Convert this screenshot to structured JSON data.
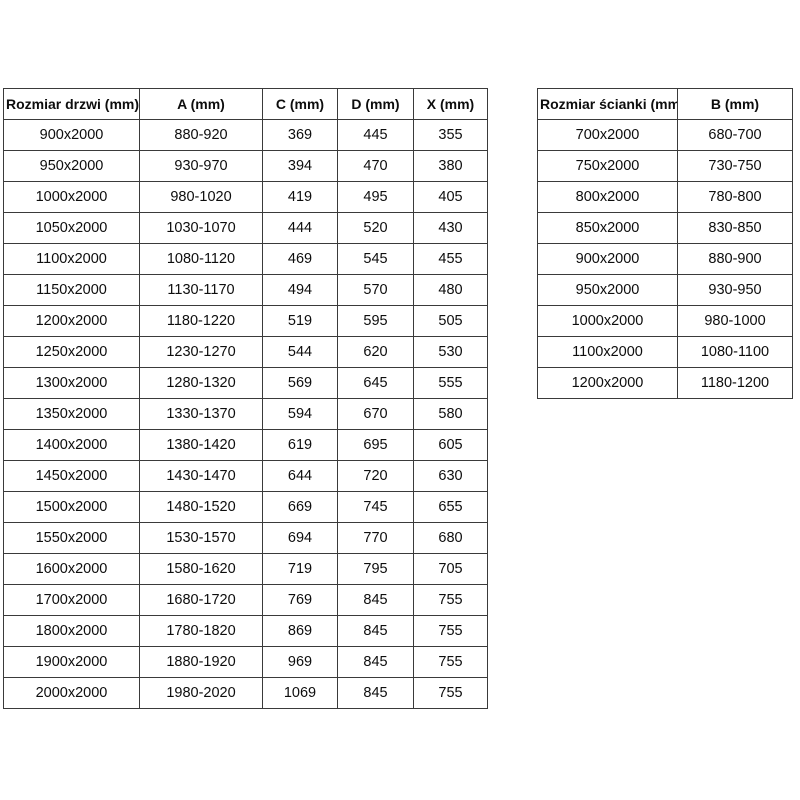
{
  "tables": {
    "doors": {
      "headers": [
        "Rozmiar drzwi (mm)",
        "A (mm)",
        "C (mm)",
        "D (mm)",
        "X (mm)"
      ],
      "rows": [
        [
          "900x2000",
          "880-920",
          "369",
          "445",
          "355"
        ],
        [
          "950x2000",
          "930-970",
          "394",
          "470",
          "380"
        ],
        [
          "1000x2000",
          "980-1020",
          "419",
          "495",
          "405"
        ],
        [
          "1050x2000",
          "1030-1070",
          "444",
          "520",
          "430"
        ],
        [
          "1100x2000",
          "1080-1120",
          "469",
          "545",
          "455"
        ],
        [
          "1150x2000",
          "1130-1170",
          "494",
          "570",
          "480"
        ],
        [
          "1200x2000",
          "1180-1220",
          "519",
          "595",
          "505"
        ],
        [
          "1250x2000",
          "1230-1270",
          "544",
          "620",
          "530"
        ],
        [
          "1300x2000",
          "1280-1320",
          "569",
          "645",
          "555"
        ],
        [
          "1350x2000",
          "1330-1370",
          "594",
          "670",
          "580"
        ],
        [
          "1400x2000",
          "1380-1420",
          "619",
          "695",
          "605"
        ],
        [
          "1450x2000",
          "1430-1470",
          "644",
          "720",
          "630"
        ],
        [
          "1500x2000",
          "1480-1520",
          "669",
          "745",
          "655"
        ],
        [
          "1550x2000",
          "1530-1570",
          "694",
          "770",
          "680"
        ],
        [
          "1600x2000",
          "1580-1620",
          "719",
          "795",
          "705"
        ],
        [
          "1700x2000",
          "1680-1720",
          "769",
          "845",
          "755"
        ],
        [
          "1800x2000",
          "1780-1820",
          "869",
          "845",
          "755"
        ],
        [
          "1900x2000",
          "1880-1920",
          "969",
          "845",
          "755"
        ],
        [
          "2000x2000",
          "1980-2020",
          "1069",
          "845",
          "755"
        ]
      ]
    },
    "walls": {
      "headers": [
        "Rozmiar ścianki (mm)",
        "B (mm)"
      ],
      "rows": [
        [
          "700x2000",
          "680-700"
        ],
        [
          "750x2000",
          "730-750"
        ],
        [
          "800x2000",
          "780-800"
        ],
        [
          "850x2000",
          "830-850"
        ],
        [
          "900x2000",
          "880-900"
        ],
        [
          "950x2000",
          "930-950"
        ],
        [
          "1000x2000",
          "980-1000"
        ],
        [
          "1100x2000",
          "1080-1100"
        ],
        [
          "1200x2000",
          "1180-1200"
        ]
      ]
    }
  },
  "colors": {
    "background": "#ffffff",
    "border": "#3a3a3a",
    "text": "#0d0d0d"
  }
}
